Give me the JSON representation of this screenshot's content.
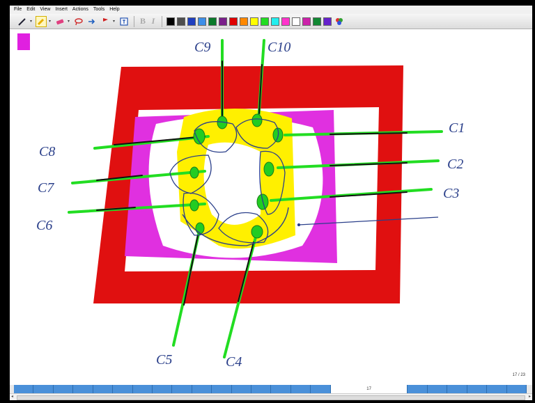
{
  "menu": [
    "File",
    "Edit",
    "View",
    "Insert",
    "Actions",
    "Tools",
    "Help"
  ],
  "toolbar": {
    "tools": [
      "pen-icon",
      "highlighter-icon",
      "eraser-icon",
      "lasso-icon",
      "select-icon",
      "insert-space-icon",
      "text-box-icon"
    ],
    "format_bold": "B",
    "format_italic": "I",
    "colors": [
      "#000000",
      "#4d4d4d",
      "#1f3fbf",
      "#3d8ee8",
      "#0a7a2a",
      "#7a1f8a",
      "#e00000",
      "#ff8800",
      "#ffff00",
      "#22dd22",
      "#22eeee",
      "#ff33cc",
      "#ffffff",
      "#cc22aa",
      "#118833",
      "#6622cc"
    ]
  },
  "canvas": {
    "labels": [
      "C9",
      "C10",
      "C1",
      "C2",
      "C3",
      "C8",
      "C7",
      "C6",
      "C5",
      "C4"
    ]
  },
  "status": {
    "page_indicator": "17 / 23",
    "current_page": "17"
  }
}
